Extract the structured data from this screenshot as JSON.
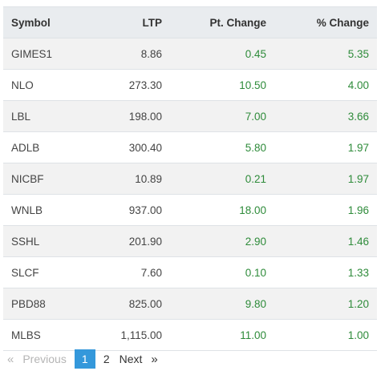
{
  "table": {
    "headers": {
      "symbol": "Symbol",
      "ltp": "LTP",
      "pt_change": "Pt. Change",
      "pct_change": "% Change"
    },
    "rows": [
      {
        "symbol": "GIMES1",
        "ltp": "8.86",
        "pt_change": "0.45",
        "pct_change": "5.35"
      },
      {
        "symbol": "NLO",
        "ltp": "273.30",
        "pt_change": "10.50",
        "pct_change": "4.00"
      },
      {
        "symbol": "LBL",
        "ltp": "198.00",
        "pt_change": "7.00",
        "pct_change": "3.66"
      },
      {
        "symbol": "ADLB",
        "ltp": "300.40",
        "pt_change": "5.80",
        "pct_change": "1.97"
      },
      {
        "symbol": "NICBF",
        "ltp": "10.89",
        "pt_change": "0.21",
        "pct_change": "1.97"
      },
      {
        "symbol": "WNLB",
        "ltp": "937.00",
        "pt_change": "18.00",
        "pct_change": "1.96"
      },
      {
        "symbol": "SSHL",
        "ltp": "201.90",
        "pt_change": "2.90",
        "pct_change": "1.46"
      },
      {
        "symbol": "SLCF",
        "ltp": "7.60",
        "pt_change": "0.10",
        "pct_change": "1.33"
      },
      {
        "symbol": "PBD88",
        "ltp": "825.00",
        "pt_change": "9.80",
        "pct_change": "1.20"
      },
      {
        "symbol": "MLBS",
        "ltp": "1,115.00",
        "pt_change": "11.00",
        "pct_change": "1.00"
      }
    ]
  },
  "pagination": {
    "first_arrow": "«",
    "previous_label": "Previous",
    "pages": [
      "1",
      "2"
    ],
    "current_page": "1",
    "next_label": "Next",
    "last_arrow": "»"
  },
  "colors": {
    "positive": "#2e8b3a",
    "header_bg": "#e9ecef",
    "active_page": "#3498db"
  }
}
